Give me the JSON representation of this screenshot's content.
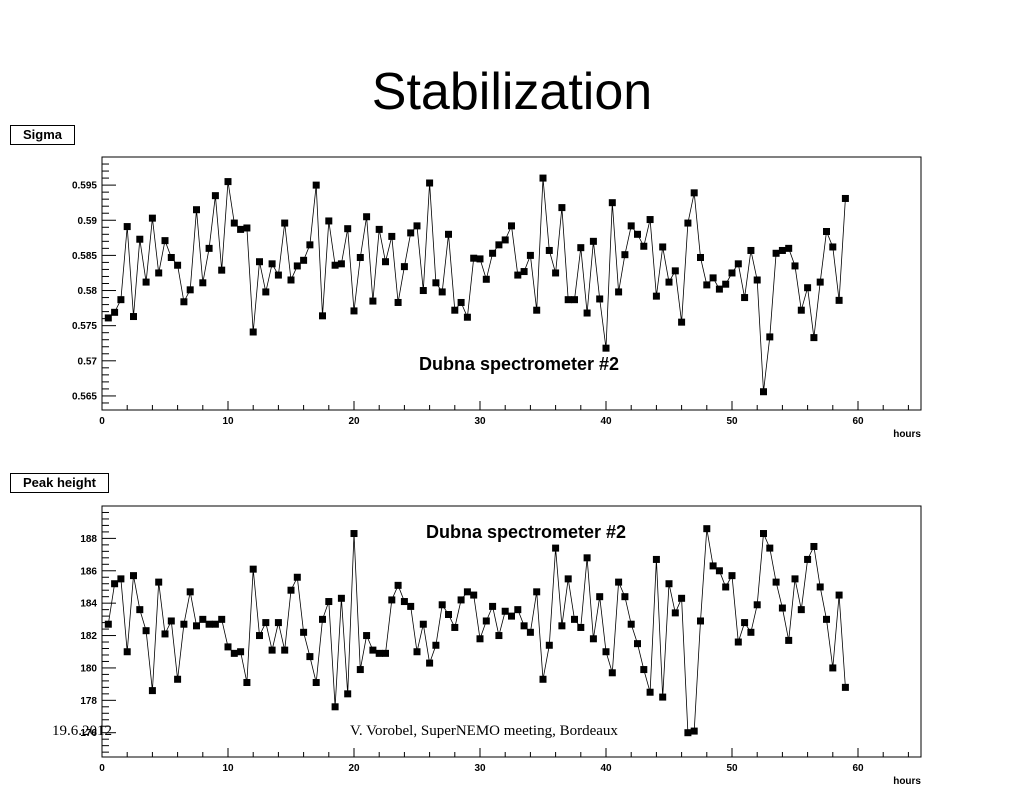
{
  "slide": {
    "title": "Stabilization",
    "footer_date": "19.6.2012",
    "footer_author": "V. Vorobel, SuperNEMO meeting, Bordeaux"
  },
  "chart_data": [
    {
      "type": "line",
      "panel_label": "Sigma",
      "annotation": "Dubna spectrometer #2",
      "xlabel": "hours",
      "xlim": [
        0,
        65
      ],
      "ylim": [
        0.563,
        0.599
      ],
      "xticks": [
        0,
        10,
        20,
        30,
        40,
        50,
        60
      ],
      "xtick_labels": [
        "0",
        "10",
        "20",
        "30",
        "40",
        "50",
        "60"
      ],
      "yticks": [
        0.565,
        0.57,
        0.575,
        0.58,
        0.585,
        0.59,
        0.595
      ],
      "ytick_labels": [
        "0.565",
        "0.57",
        "0.575",
        "0.58",
        "0.585",
        "0.59",
        "0.595"
      ],
      "marker": "square",
      "x": [
        0.5,
        1.0,
        1.5,
        2.0,
        2.5,
        3.0,
        3.5,
        4.0,
        4.5,
        5.0,
        5.5,
        6.0,
        6.5,
        7.0,
        7.5,
        8.0,
        8.5,
        9.0,
        9.5,
        10.0,
        10.5,
        11.0,
        11.5,
        12.0,
        12.5,
        13.0,
        13.5,
        14.0,
        14.5,
        15.0,
        15.5,
        16.0,
        16.5,
        17.0,
        17.5,
        18.0,
        18.5,
        19.0,
        19.5,
        20.0,
        20.5,
        21.0,
        21.5,
        22.0,
        22.5,
        23.0,
        23.5,
        24.0,
        24.5,
        25.0,
        25.5,
        26.0,
        26.5,
        27.0,
        27.5,
        28.0,
        28.5,
        29.0,
        29.5,
        30.0,
        30.5,
        31.0,
        31.5,
        32.0,
        32.5,
        33.0,
        33.5,
        34.0,
        34.5,
        35.0,
        35.5,
        36.0,
        36.5,
        37.0,
        37.5,
        38.0,
        38.5,
        39.0,
        39.5,
        40.0,
        40.5,
        41.0,
        41.5,
        42.0,
        42.5,
        43.0,
        43.5,
        44.0,
        44.5,
        45.0,
        45.5,
        46.0,
        46.5,
        47.0,
        47.5,
        48.0,
        48.5,
        49.0,
        49.5,
        50.0,
        50.5,
        51.0,
        51.5,
        52.0,
        52.5,
        53.0,
        53.5,
        54.0,
        54.5,
        55.0,
        55.5,
        56.0,
        56.5,
        57.0,
        57.5,
        58.0,
        58.5,
        59.0
      ],
      "y": [
        0.5761,
        0.5769,
        0.5787,
        0.5891,
        0.5763,
        0.5873,
        0.5812,
        0.5903,
        0.5825,
        0.5871,
        0.5847,
        0.5836,
        0.5784,
        0.5801,
        0.5915,
        0.5811,
        0.586,
        0.5935,
        0.5829,
        0.5955,
        0.5896,
        0.5887,
        0.5889,
        0.5741,
        0.5841,
        0.5798,
        0.5838,
        0.5822,
        0.5896,
        0.5815,
        0.5835,
        0.5843,
        0.5865,
        0.595,
        0.5764,
        0.5899,
        0.5836,
        0.5838,
        0.5888,
        0.5771,
        0.5847,
        0.5905,
        0.5785,
        0.5887,
        0.5841,
        0.5877,
        0.5783,
        0.5834,
        0.5882,
        0.5892,
        0.58,
        0.5953,
        0.5811,
        0.5798,
        0.588,
        0.5772,
        0.5783,
        0.5762,
        0.5846,
        0.5845,
        0.5816,
        0.5853,
        0.5865,
        0.5872,
        0.5892,
        0.5822,
        0.5827,
        0.585,
        0.5772,
        0.596,
        0.5857,
        0.5825,
        0.5918,
        0.5787,
        0.5787,
        0.5861,
        0.5768,
        0.587,
        0.5788,
        0.5718,
        0.5925,
        0.5798,
        0.5851,
        0.5892,
        0.588,
        0.5863,
        0.5901,
        0.5792,
        0.5862,
        0.5812,
        0.5828,
        0.5755,
        0.5896,
        0.5939,
        0.5847,
        0.5808,
        0.5818,
        0.5802,
        0.5809,
        0.5825,
        0.5838,
        0.579,
        0.5857,
        0.5815,
        0.5656,
        0.5734,
        0.5853,
        0.5857,
        0.586,
        0.5835,
        0.5772,
        0.5804,
        0.5733,
        0.5812,
        0.5884,
        0.5862,
        0.5786,
        0.5931
      ]
    },
    {
      "type": "line",
      "panel_label": "Peak height",
      "annotation": "Dubna spectrometer #2",
      "xlabel": "hours",
      "xlim": [
        0,
        65
      ],
      "ylim": [
        174.5,
        190
      ],
      "xticks": [
        0,
        10,
        20,
        30,
        40,
        50,
        60
      ],
      "xtick_labels": [
        "0",
        "10",
        "20",
        "30",
        "40",
        "50",
        "60"
      ],
      "yticks": [
        176,
        178,
        180,
        182,
        184,
        186,
        188
      ],
      "ytick_labels": [
        "176",
        "178",
        "180",
        "182",
        "184",
        "186",
        "188"
      ],
      "marker": "square",
      "x": [
        0.5,
        1.0,
        1.5,
        2.0,
        2.5,
        3.0,
        3.5,
        4.0,
        4.5,
        5.0,
        5.5,
        6.0,
        6.5,
        7.0,
        7.5,
        8.0,
        8.5,
        9.0,
        9.5,
        10.0,
        10.5,
        11.0,
        11.5,
        12.0,
        12.5,
        13.0,
        13.5,
        14.0,
        14.5,
        15.0,
        15.5,
        16.0,
        16.5,
        17.0,
        17.5,
        18.0,
        18.5,
        19.0,
        19.5,
        20.0,
        20.5,
        21.0,
        21.5,
        22.0,
        22.5,
        23.0,
        23.5,
        24.0,
        24.5,
        25.0,
        25.5,
        26.0,
        26.5,
        27.0,
        27.5,
        28.0,
        28.5,
        29.0,
        29.5,
        30.0,
        30.5,
        31.0,
        31.5,
        32.0,
        32.5,
        33.0,
        33.5,
        34.0,
        34.5,
        35.0,
        35.5,
        36.0,
        36.5,
        37.0,
        37.5,
        38.0,
        38.5,
        39.0,
        39.5,
        40.0,
        40.5,
        41.0,
        41.5,
        42.0,
        42.5,
        43.0,
        43.5,
        44.0,
        44.5,
        45.0,
        45.5,
        46.0,
        46.5,
        47.0,
        47.5,
        48.0,
        48.5,
        49.0,
        49.5,
        50.0,
        50.5,
        51.0,
        51.5,
        52.0,
        52.5,
        53.0,
        53.5,
        54.0,
        54.5,
        55.0,
        55.5,
        56.0,
        56.5,
        57.0,
        57.5,
        58.0,
        58.5,
        59.0
      ],
      "y": [
        182.7,
        185.2,
        185.5,
        181.0,
        185.7,
        183.6,
        182.3,
        178.6,
        185.3,
        182.1,
        182.9,
        179.3,
        182.7,
        184.7,
        182.6,
        183.0,
        182.7,
        182.7,
        183.0,
        181.3,
        180.9,
        181.0,
        179.1,
        186.1,
        182.0,
        182.8,
        181.1,
        182.8,
        181.1,
        184.8,
        185.6,
        182.2,
        180.7,
        179.1,
        183.0,
        184.1,
        177.6,
        184.3,
        178.4,
        188.3,
        179.9,
        182.0,
        181.1,
        180.9,
        180.9,
        184.2,
        185.1,
        184.1,
        183.8,
        181.0,
        182.7,
        180.3,
        181.4,
        183.9,
        183.3,
        182.5,
        184.2,
        184.7,
        184.5,
        181.8,
        182.9,
        183.8,
        182.0,
        183.5,
        183.2,
        183.6,
        182.6,
        182.2,
        184.7,
        179.3,
        181.4,
        187.4,
        182.6,
        185.5,
        183.0,
        182.5,
        186.8,
        181.8,
        184.4,
        181.0,
        179.7,
        185.3,
        184.4,
        182.7,
        181.5,
        179.9,
        178.5,
        186.7,
        178.2,
        185.2,
        183.4,
        184.3,
        176.0,
        176.1,
        182.9,
        188.6,
        186.3,
        186.0,
        185.0,
        185.7,
        181.6,
        182.8,
        182.2,
        183.9,
        188.3,
        187.4,
        185.3,
        183.7,
        181.7,
        185.5,
        183.6,
        186.7,
        187.5,
        185.0,
        183.0,
        180.0,
        184.5,
        178.8
      ]
    }
  ]
}
